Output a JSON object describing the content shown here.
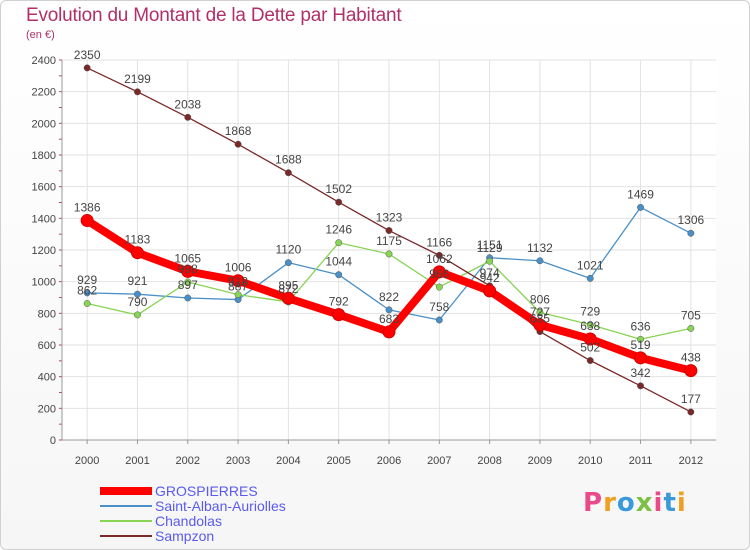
{
  "header": {
    "title": "Evolution du Montant de la Dette par Habitant",
    "subtitle": "(en €)"
  },
  "logo": {
    "text": "Proxiti",
    "colors": [
      "#e84a8a",
      "#f0a020",
      "#3a9ad9",
      "#7ac143",
      "#e84a8a",
      "#3a9ad9",
      "#f0a020"
    ]
  },
  "chart_data": {
    "type": "line",
    "title": "Evolution du Montant de la Dette par Habitant",
    "ylabel": "(en €)",
    "xlabel": "",
    "x": [
      "2000",
      "2001",
      "2002",
      "2003",
      "2004",
      "2005",
      "2006",
      "2007",
      "2008",
      "2009",
      "2010",
      "2011",
      "2012"
    ],
    "ylim": [
      0,
      2400
    ],
    "yticks": [
      0,
      200,
      400,
      600,
      800,
      1000,
      1200,
      1400,
      1600,
      1800,
      2000,
      2200,
      2400
    ],
    "grid": true,
    "legend_position": "bottom-left",
    "series": [
      {
        "name": "GROSPIERRES",
        "color": "#ff0000",
        "values": [
          1386,
          1183,
          1065,
          1006,
          895,
          792,
          683,
          1062,
          942,
          727,
          638,
          519,
          438
        ]
      },
      {
        "name": "Saint-Alban-Auriolles",
        "color": "#4a90c8",
        "values": [
          929,
          921,
          897,
          887,
          1120,
          1044,
          822,
          758,
          1151,
          1132,
          1021,
          1469,
          1306
        ]
      },
      {
        "name": "Chandolas",
        "color": "#88d454",
        "values": [
          862,
          790,
          998,
          918,
          872,
          1246,
          1175,
          966,
          1129,
          806,
          729,
          636,
          705
        ]
      },
      {
        "name": "Sampzon",
        "color": "#7a2828",
        "values": [
          2350,
          2199,
          2038,
          1868,
          1688,
          1502,
          1323,
          1166,
          974,
          685,
          502,
          342,
          177
        ]
      }
    ]
  }
}
